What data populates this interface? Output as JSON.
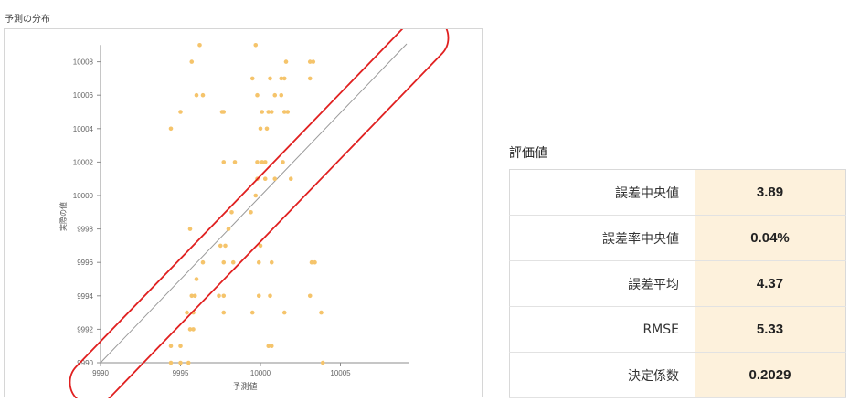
{
  "chart_section": {
    "title": "予測の分布"
  },
  "chart_data": {
    "type": "scatter",
    "xlabel": "予測値",
    "ylabel": "実際の値",
    "xlim": [
      9990,
      10009
    ],
    "ylim": [
      9990,
      10009
    ],
    "x_ticks": [
      "9990",
      "9995",
      "10000",
      "10005"
    ],
    "y_ticks": [
      "9990",
      "9992",
      "9994",
      "9996",
      "9998",
      "10000",
      "10002",
      "10004",
      "10006",
      "10008"
    ],
    "reference_line": "y = x",
    "point_color": "#f5c46b",
    "line_color": "#9a9a9a",
    "highlight_color": "#e02020",
    "points": [
      [
        9996.2,
        10009
      ],
      [
        9999.7,
        10009
      ],
      [
        9995.7,
        10008
      ],
      [
        10001.6,
        10008
      ],
      [
        10003.1,
        10008
      ],
      [
        10003.3,
        10008
      ],
      [
        9999.5,
        10007
      ],
      [
        10000.6,
        10007
      ],
      [
        10001.3,
        10007
      ],
      [
        10001.5,
        10007
      ],
      [
        10003.1,
        10007
      ],
      [
        9996.0,
        10006
      ],
      [
        9996.4,
        10006
      ],
      [
        9999.8,
        10006
      ],
      [
        10000.9,
        10006
      ],
      [
        10001.3,
        10006
      ],
      [
        9995.0,
        10005
      ],
      [
        9997.6,
        10005
      ],
      [
        9997.7,
        10005
      ],
      [
        10000.1,
        10005
      ],
      [
        10000.5,
        10005
      ],
      [
        10000.7,
        10005
      ],
      [
        10001.5,
        10005
      ],
      [
        10001.7,
        10005
      ],
      [
        9994.4,
        10004
      ],
      [
        10000.0,
        10004
      ],
      [
        10000.4,
        10004
      ],
      [
        9997.7,
        10002
      ],
      [
        9998.4,
        10002
      ],
      [
        9999.8,
        10002
      ],
      [
        10000.1,
        10002
      ],
      [
        10000.3,
        10002
      ],
      [
        10001.4,
        10002
      ],
      [
        9999.8,
        10001
      ],
      [
        10000.3,
        10001
      ],
      [
        10000.9,
        10001
      ],
      [
        10001.9,
        10001
      ],
      [
        9999.7,
        10000
      ],
      [
        9998.2,
        9999
      ],
      [
        9999.4,
        9999
      ],
      [
        9998.0,
        9998
      ],
      [
        9995.6,
        9998
      ],
      [
        9997.5,
        9997
      ],
      [
        9997.8,
        9997
      ],
      [
        10000.0,
        9997
      ],
      [
        9996.4,
        9996
      ],
      [
        9997.7,
        9996
      ],
      [
        9998.3,
        9996
      ],
      [
        9999.9,
        9996
      ],
      [
        10000.7,
        9996
      ],
      [
        10003.2,
        9996
      ],
      [
        10003.4,
        9996
      ],
      [
        9996.0,
        9995
      ],
      [
        9995.7,
        9994
      ],
      [
        9995.9,
        9994
      ],
      [
        9997.4,
        9994
      ],
      [
        9997.7,
        9994
      ],
      [
        9999.9,
        9994
      ],
      [
        10000.6,
        9994
      ],
      [
        10003.1,
        9994
      ],
      [
        9995.4,
        9993
      ],
      [
        9995.8,
        9993
      ],
      [
        9997.7,
        9993
      ],
      [
        9999.5,
        9993
      ],
      [
        10001.5,
        9993
      ],
      [
        10003.8,
        9993
      ],
      [
        9995.6,
        9992
      ],
      [
        9995.8,
        9992
      ],
      [
        9994.4,
        9991
      ],
      [
        9995.0,
        9991
      ],
      [
        10000.5,
        9991
      ],
      [
        10000.7,
        9991
      ],
      [
        9994.4,
        9990
      ],
      [
        9995.0,
        9990
      ],
      [
        9995.5,
        9990
      ],
      [
        10003.9,
        9990
      ]
    ]
  },
  "metrics": {
    "title": "評価値",
    "rows": [
      {
        "label": "誤差中央値",
        "value": "3.89"
      },
      {
        "label": "誤差率中央値",
        "value": "0.04%"
      },
      {
        "label": "誤差平均",
        "value": "4.37"
      },
      {
        "label": "RMSE",
        "value": "5.33"
      },
      {
        "label": "決定係数",
        "value": "0.2029"
      }
    ]
  }
}
